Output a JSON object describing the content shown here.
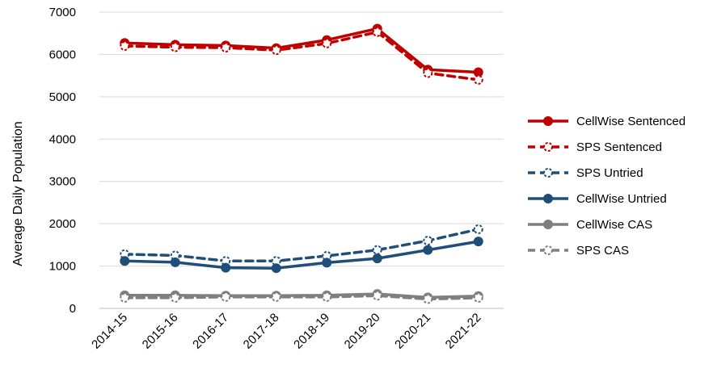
{
  "chart_data": {
    "type": "line",
    "title": "",
    "xlabel": "",
    "ylabel": "Average Daily Population",
    "ylim": [
      0,
      7000
    ],
    "yticks": [
      0,
      1000,
      2000,
      3000,
      4000,
      5000,
      6000,
      7000
    ],
    "ytick_labels": [
      "0",
      "1000",
      "2000",
      "3000",
      "4000",
      "5000",
      "6000",
      "7000"
    ],
    "grid": "horizontal",
    "legend_position": "right",
    "categories": [
      "2014-15",
      "2015-16",
      "2016-17",
      "2017-18",
      "2018-19",
      "2019-20",
      "2020-21",
      "2021-22"
    ],
    "series": [
      {
        "name": "CellWise Sentenced",
        "color": "#c00000",
        "dash": "solid",
        "marker": "filled",
        "values": [
          6270,
          6230,
          6210,
          6150,
          6340,
          6610,
          5640,
          5580
        ]
      },
      {
        "name": "SPS Sentenced",
        "color": "#c00000",
        "dash": "dashed",
        "marker": "hollow",
        "values": [
          6200,
          6170,
          6160,
          6100,
          6260,
          6530,
          5560,
          5400
        ]
      },
      {
        "name": "SPS Untried",
        "color": "#1f4e79",
        "dash": "dashed",
        "marker": "hollow",
        "values": [
          1280,
          1250,
          1120,
          1120,
          1240,
          1380,
          1600,
          1870
        ]
      },
      {
        "name": "CellWise Untried",
        "color": "#1f4e79",
        "dash": "solid",
        "marker": "filled",
        "values": [
          1120,
          1090,
          960,
          950,
          1080,
          1180,
          1380,
          1580
        ]
      },
      {
        "name": "CellWise CAS",
        "color": "#7f7f7f",
        "dash": "solid",
        "marker": "filled",
        "values": [
          310,
          310,
          300,
          300,
          310,
          340,
          260,
          290
        ]
      },
      {
        "name": "SPS CAS",
        "color": "#7f7f7f",
        "dash": "dashed",
        "marker": "hollow",
        "values": [
          250,
          250,
          270,
          270,
          270,
          300,
          220,
          250
        ]
      }
    ]
  }
}
